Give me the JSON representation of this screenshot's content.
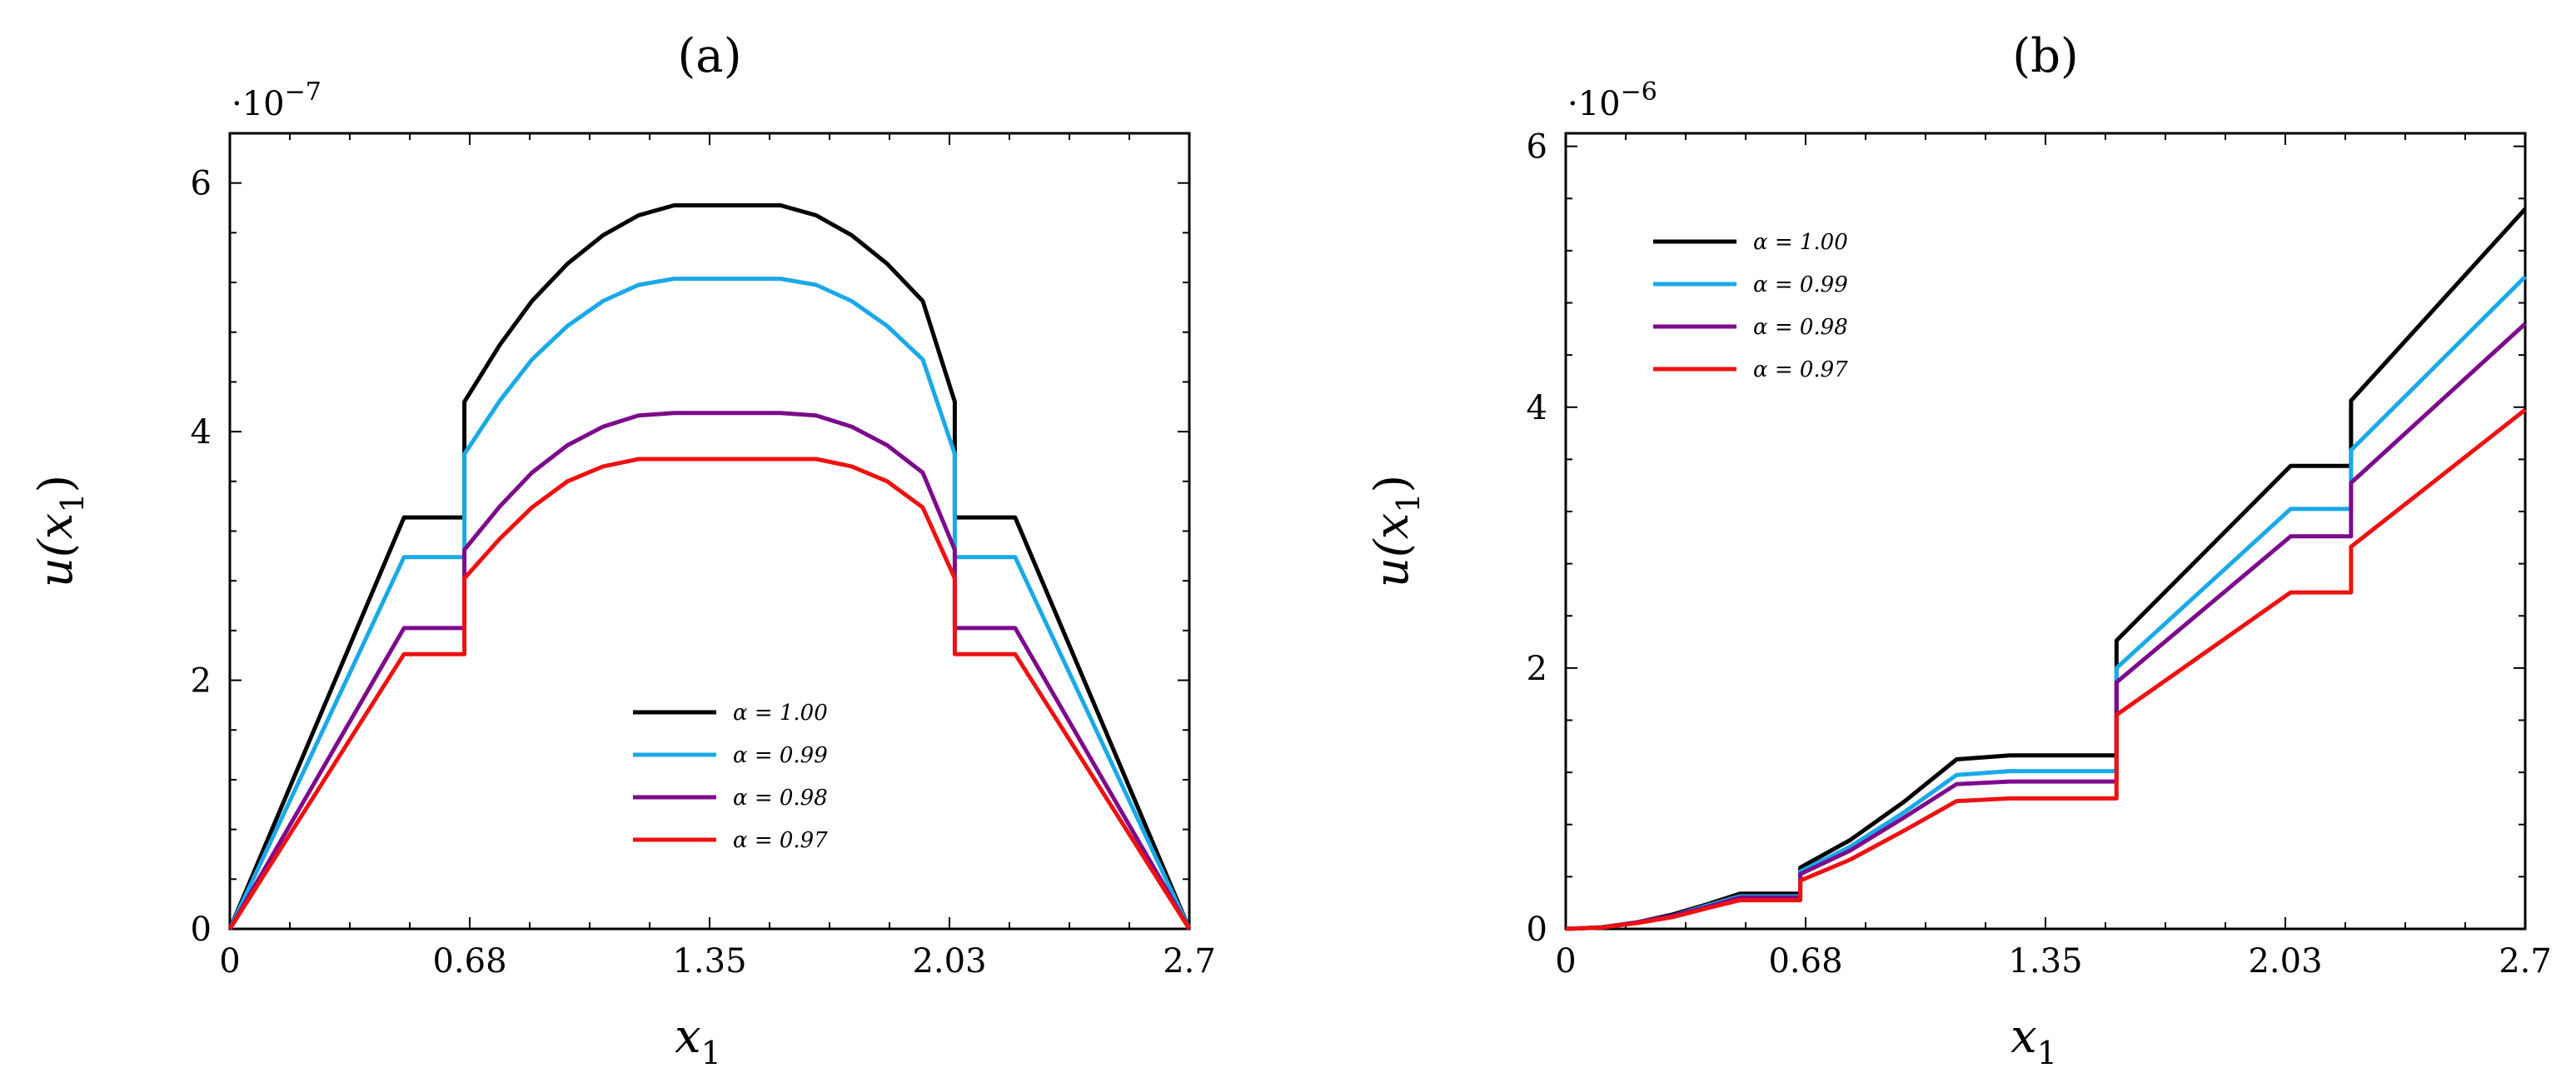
{
  "chart_data": [
    {
      "type": "line",
      "title": "(a)",
      "xlabel": "x",
      "xlabel_sub": "1",
      "ylabel": "u(x",
      "ylabel_sub": "1",
      "ylabel_close": ")",
      "exponent_label": "·10",
      "exponent_power": "−7",
      "xlim": [
        0,
        2.7
      ],
      "ylim": [
        0,
        6.4
      ],
      "xticks": [
        0,
        0.675,
        1.35,
        2.025,
        2.7
      ],
      "xtick_labels": [
        "0",
        "0.68",
        "1.35",
        "2.03",
        "2.7"
      ],
      "yticks": [
        0,
        2,
        4,
        6
      ],
      "ytick_labels": [
        "0",
        "2",
        "4",
        "6"
      ],
      "legend_position": "lower-center",
      "series": [
        {
          "name": "α = 1.00",
          "color": "#000000",
          "x": [
            0,
            0.49,
            0.66,
            0.66,
            0.76,
            0.85,
            0.95,
            1.05,
            1.15,
            1.25,
            1.25,
            1.55,
            1.55,
            1.65,
            1.75,
            1.85,
            1.95,
            2.04,
            2.04,
            2.21,
            2.7
          ],
          "y": [
            0,
            3.31,
            3.31,
            4.24,
            4.7,
            5.05,
            5.35,
            5.58,
            5.74,
            5.82,
            5.82,
            5.82,
            5.82,
            5.74,
            5.58,
            5.35,
            5.05,
            4.24,
            3.31,
            3.31,
            0
          ]
        },
        {
          "name": "α = 0.99",
          "color": "#1aa9e8",
          "x": [
            0,
            0.49,
            0.66,
            0.66,
            0.76,
            0.85,
            0.95,
            1.05,
            1.15,
            1.25,
            1.25,
            1.55,
            1.55,
            1.65,
            1.75,
            1.85,
            1.95,
            2.04,
            2.04,
            2.21,
            2.7
          ],
          "y": [
            0,
            2.99,
            2.99,
            3.82,
            4.25,
            4.58,
            4.85,
            5.05,
            5.18,
            5.23,
            5.23,
            5.23,
            5.23,
            5.18,
            5.05,
            4.85,
            4.58,
            3.82,
            2.99,
            2.99,
            0
          ]
        },
        {
          "name": "α = 0.98",
          "color": "#7d0a8c",
          "x": [
            0,
            0.49,
            0.66,
            0.66,
            0.76,
            0.85,
            0.95,
            1.05,
            1.15,
            1.25,
            1.25,
            1.55,
            1.55,
            1.65,
            1.75,
            1.85,
            1.95,
            2.04,
            2.04,
            2.21,
            2.7
          ],
          "y": [
            0,
            2.42,
            2.42,
            3.05,
            3.4,
            3.67,
            3.89,
            4.04,
            4.13,
            4.15,
            4.15,
            4.15,
            4.15,
            4.13,
            4.04,
            3.89,
            3.67,
            3.05,
            2.42,
            2.42,
            0
          ]
        },
        {
          "name": "α = 0.97",
          "color": "#ee1111",
          "x": [
            0,
            0.49,
            0.66,
            0.66,
            0.76,
            0.85,
            0.95,
            1.05,
            1.15,
            1.25,
            1.25,
            1.55,
            1.55,
            1.65,
            1.75,
            1.85,
            1.95,
            2.04,
            2.04,
            2.21,
            2.7
          ],
          "y": [
            0,
            2.21,
            2.21,
            2.82,
            3.14,
            3.39,
            3.6,
            3.72,
            3.78,
            3.78,
            3.78,
            3.78,
            3.78,
            3.78,
            3.72,
            3.6,
            3.39,
            2.82,
            2.21,
            2.21,
            0
          ]
        }
      ]
    },
    {
      "type": "line",
      "title": "(b)",
      "xlabel": "x",
      "xlabel_sub": "1",
      "ylabel": "u(x",
      "ylabel_sub": "1",
      "ylabel_close": ")",
      "exponent_label": "·10",
      "exponent_power": "−6",
      "xlim": [
        0,
        2.7
      ],
      "ylim": [
        0,
        6.1
      ],
      "xticks": [
        0,
        0.675,
        1.35,
        2.025,
        2.7
      ],
      "xtick_labels": [
        "0",
        "0.68",
        "1.35",
        "2.03",
        "2.7"
      ],
      "yticks": [
        0,
        2,
        4,
        6
      ],
      "ytick_labels": [
        "0",
        "2",
        "4",
        "6"
      ],
      "legend_position": "top-left",
      "series": [
        {
          "name": "α = 1.00",
          "color": "#000000",
          "x": [
            0,
            0.1,
            0.2,
            0.3,
            0.4,
            0.49,
            0.66,
            0.66,
            0.8,
            0.95,
            1.1,
            1.25,
            1.55,
            1.55,
            2.04,
            2.21,
            2.21,
            2.7
          ],
          "y": [
            0,
            0.012,
            0.05,
            0.11,
            0.19,
            0.27,
            0.27,
            0.47,
            0.68,
            0.97,
            1.3,
            1.33,
            1.33,
            2.21,
            3.55,
            3.55,
            4.05,
            5.52
          ]
        },
        {
          "name": "α = 0.99",
          "color": "#1aa9e8",
          "x": [
            0,
            0.1,
            0.2,
            0.3,
            0.4,
            0.49,
            0.66,
            0.66,
            0.8,
            0.95,
            1.1,
            1.25,
            1.55,
            1.55,
            2.04,
            2.21,
            2.21,
            2.7
          ],
          "y": [
            0,
            0.011,
            0.05,
            0.1,
            0.18,
            0.25,
            0.25,
            0.44,
            0.63,
            0.89,
            1.18,
            1.21,
            1.21,
            2.0,
            3.22,
            3.22,
            3.67,
            5.0
          ]
        },
        {
          "name": "α = 0.98",
          "color": "#7d0a8c",
          "x": [
            0,
            0.1,
            0.2,
            0.3,
            0.4,
            0.49,
            0.66,
            0.66,
            0.8,
            0.95,
            1.1,
            1.25,
            1.55,
            1.55,
            2.04,
            2.21,
            2.21,
            2.7
          ],
          "y": [
            0,
            0.011,
            0.05,
            0.1,
            0.17,
            0.24,
            0.24,
            0.42,
            0.6,
            0.85,
            1.11,
            1.13,
            1.13,
            1.89,
            3.01,
            3.01,
            3.42,
            4.64
          ]
        },
        {
          "name": "α = 0.97",
          "color": "#ee1111",
          "x": [
            0,
            0.1,
            0.2,
            0.3,
            0.4,
            0.49,
            0.66,
            0.66,
            0.8,
            0.95,
            1.1,
            1.25,
            1.55,
            1.55,
            2.04,
            2.21,
            2.21,
            2.7
          ],
          "y": [
            0,
            0.01,
            0.045,
            0.09,
            0.16,
            0.22,
            0.22,
            0.37,
            0.53,
            0.75,
            0.98,
            1.0,
            1.0,
            1.64,
            2.58,
            2.58,
            2.93,
            3.98
          ]
        }
      ]
    }
  ]
}
